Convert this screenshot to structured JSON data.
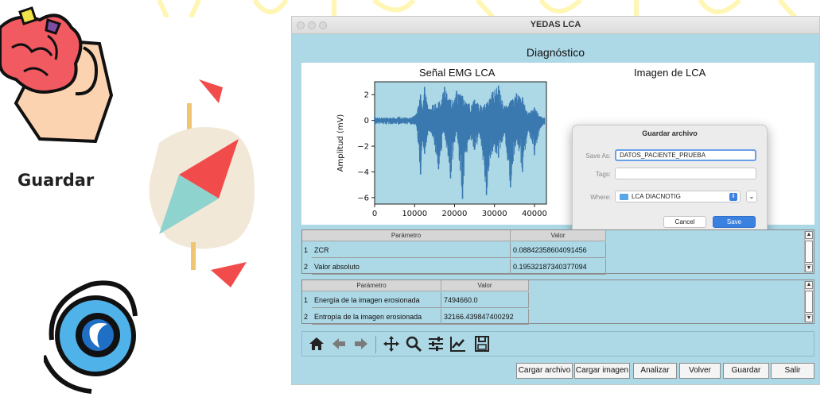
{
  "slide": {
    "caption": "Guardar"
  },
  "window": {
    "title": "YEDAS LCA",
    "heading": "Diagnóstico"
  },
  "plots": {
    "emg_title": "Señal EMG LCA",
    "image_title": "Imagen de LCA"
  },
  "chart_data": {
    "type": "line",
    "title": "Señal EMG LCA",
    "xlabel": "",
    "ylabel": "Amplitud (mV)",
    "xlim": [
      0,
      43000
    ],
    "ylim": [
      -6.5,
      3
    ],
    "xticks": [
      "0",
      "10000",
      "20000",
      "30000",
      "40000"
    ],
    "yticks": [
      "2",
      "0",
      "−2",
      "−4",
      "−6"
    ],
    "line_color": "#3a78b0",
    "series": [
      {
        "x": [
          0,
          3000,
          6000,
          9000,
          10500,
          11500,
          12000,
          12500,
          13500,
          14500,
          16000,
          17500,
          19000,
          20500,
          22000,
          23500,
          25000,
          26500,
          28000,
          29500,
          31000,
          32500,
          34000,
          35500,
          37000,
          38500,
          40000,
          41500,
          42500
        ],
        "min": [
          -0.3,
          -0.3,
          -0.3,
          -0.3,
          -0.4,
          -4.2,
          -1.5,
          -2.6,
          -0.8,
          -1.2,
          -3.8,
          -1.0,
          -4.5,
          -0.9,
          -6.1,
          -1.5,
          -2.3,
          -1.4,
          -5.8,
          -2.4,
          -2.9,
          -1.0,
          -5.2,
          -1.5,
          -4.0,
          -0.8,
          -2.7,
          -0.6,
          -0.3
        ],
        "max": [
          0.3,
          0.2,
          0.3,
          0.2,
          0.5,
          2.0,
          0.8,
          2.6,
          0.9,
          1.2,
          1.4,
          2.6,
          1.6,
          2.3,
          1.9,
          1.3,
          1.6,
          1.2,
          1.3,
          2.2,
          2.7,
          1.1,
          1.5,
          2.1,
          1.8,
          0.6,
          1.0,
          0.3,
          0.2
        ]
      }
    ]
  },
  "dialog": {
    "title": "Guardar archivo",
    "save_as_label": "Save As:",
    "save_as_value": "DATOS_PACIENTE_PRUEBA",
    "tags_label": "Tags:",
    "tags_value": "",
    "where_label": "Where:",
    "where_value": "LCA DIACNOTIG",
    "cancel": "Cancel",
    "save": "Save"
  },
  "table1": {
    "headers": [
      "Parámetro",
      "Valor"
    ],
    "rows": [
      {
        "num": "1",
        "param": "ZCR",
        "value": "0.08842358604091456"
      },
      {
        "num": "2",
        "param": "Valor absoluto",
        "value": "0.19532187340377094"
      }
    ]
  },
  "table2": {
    "headers": [
      "Parámetro",
      "Valor"
    ],
    "rows": [
      {
        "num": "1",
        "param": "Energía de la imagen erosionada",
        "value": "7494660.0"
      },
      {
        "num": "2",
        "param": "Entropía de la imagen erosionada",
        "value": "32166.439847400292"
      }
    ]
  },
  "toolbar": {
    "icons": [
      "home-icon",
      "back-arrow-icon",
      "forward-arrow-icon",
      "pan-move-icon",
      "zoom-icon",
      "configure-subplots-icon",
      "edit-axis-icon",
      "save-figure-icon"
    ]
  },
  "buttons": {
    "cargar_archivo": "Cargar archivo",
    "cargar_imagen": "Cargar imagen",
    "analizar": "Analizar",
    "volver": "Volver",
    "guardar": "Guardar",
    "salir": "Salir"
  }
}
